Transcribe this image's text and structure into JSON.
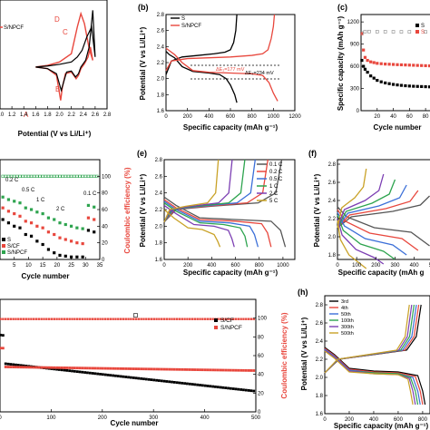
{
  "panels": {
    "a": {
      "legend": [
        "S/NPCF"
      ],
      "xlabel": "Potential (V vs Li/Li⁺)",
      "xticks": [
        "1.0",
        "1.2",
        "1.4",
        "1.6",
        "1.8",
        "2.0",
        "2.2",
        "2.4",
        "2.6",
        "2.8"
      ],
      "peaks": [
        "A",
        "B",
        "C",
        "D"
      ]
    },
    "b": {
      "label": "(b)",
      "xlabel": "Specific capacity (mAh g⁻¹)",
      "ylabel": "Potential (V vs Li/Li⁺)",
      "xticks": [
        "0",
        "200",
        "400",
        "600",
        "800",
        "1000",
        "1200"
      ],
      "yticks": [
        "1.6",
        "1.8",
        "2.0",
        "2.2",
        "2.4",
        "2.6",
        "2.8"
      ],
      "legend": [
        "S",
        "S/NPCF"
      ],
      "annotations": [
        "ΔE₁=177 mV",
        "ΔE₂=234 mV"
      ]
    },
    "c": {
      "label": "(c)",
      "xlabel": "Cycle number",
      "ylabel": "Specific capacity (mAh g⁻¹)",
      "xticks": [
        "20",
        "40",
        "60",
        "80"
      ],
      "yticks": [
        "0",
        "300",
        "600",
        "900",
        "1200"
      ],
      "legend": [
        "S",
        "S"
      ]
    },
    "d": {
      "xlabel": "Cycle number",
      "ylabel_right": "Coulombic efficiency (%)",
      "xticks": [
        "5",
        "10",
        "15",
        "20",
        "25",
        "30",
        "35"
      ],
      "yticks_right": [
        "0",
        "20",
        "40",
        "60",
        "80",
        "100"
      ],
      "rates": [
        "0.2 C",
        "0.5 C",
        "1 C",
        "2 C",
        "0.1 C"
      ],
      "legend": [
        "S",
        "S/CF",
        "S/NPCF"
      ]
    },
    "e": {
      "label": "(e)",
      "xlabel": "Specific capacity (mAh g⁻¹)",
      "ylabel": "Potential (V vs Li/Li⁺)",
      "xticks": [
        "0",
        "200",
        "400",
        "600",
        "800",
        "1000"
      ],
      "yticks": [
        "1.6",
        "1.8",
        "2.0",
        "2.2",
        "2.4",
        "2.6",
        "2.8"
      ],
      "legend": [
        "0.1 C",
        "0.2 C",
        "0.5 C",
        "1 C",
        "2 C",
        "5 C"
      ],
      "colors": [
        "#555555",
        "#e8473d",
        "#3b6fd8",
        "#2ea44f",
        "#7c3fb3",
        "#c9a227"
      ]
    },
    "f": {
      "label": "(f)",
      "xlabel": "Specific capacity (mAh g",
      "ylabel": "Potential (V vs Li/Li⁺)",
      "xticks": [
        "0",
        "100",
        "200",
        "300",
        "400",
        "500"
      ],
      "yticks": [
        "1.8",
        "2.0",
        "2.2",
        "2.4",
        "2.6",
        "2.8"
      ]
    },
    "g": {
      "xlabel": "Cycle number",
      "ylabel_right": "Coulombic efficiency (%)",
      "xticks": [
        "0",
        "100",
        "200",
        "300",
        "400",
        "500"
      ],
      "yticks_right": [
        "0",
        "20",
        "40",
        "60",
        "80",
        "100"
      ],
      "legend": [
        "S/CF",
        "S/NPCF"
      ]
    },
    "h": {
      "label": "(h)",
      "xlabel": "Specific capacity (mAh g⁻¹)",
      "ylabel": "Potential (V vs Li/Li⁺)",
      "xticks": [
        "0",
        "200",
        "400",
        "600",
        "800"
      ],
      "yticks": [
        "1.6",
        "1.8",
        "2.0",
        "2.2",
        "2.4",
        "2.6",
        "2.8"
      ],
      "legend": [
        "3rd",
        "4th",
        "50th",
        "100th",
        "300th",
        "500th"
      ],
      "colors": [
        "#000000",
        "#e8473d",
        "#3b6fd8",
        "#2ea44f",
        "#7c3fb3",
        "#c9a227"
      ]
    }
  },
  "chart_data": [
    {
      "type": "line",
      "panel": "a",
      "xlabel": "Potential (V vs Li/Li⁺)",
      "xlim": [
        1.0,
        2.8
      ],
      "series": [
        {
          "name": "S/NPCF",
          "color": "#e8473d",
          "x": [
            1.6,
            1.8,
            1.95,
            2.02,
            2.05,
            2.1,
            2.2,
            2.28,
            2.32,
            2.36,
            2.42,
            2.48,
            2.52,
            2.56,
            2.5,
            2.42,
            2.36,
            2.3,
            2.2,
            2.0,
            1.8,
            1.6
          ],
          "y": [
            0.0,
            -0.05,
            -0.25,
            -1.0,
            -0.6,
            -0.2,
            -0.15,
            -0.35,
            -0.25,
            -0.05,
            0.1,
            0.3,
            0.6,
            0.2,
            0.55,
            1.3,
            1.6,
            1.2,
            0.4,
            0.15,
            0.05,
            0.0
          ]
        },
        {
          "name": "",
          "color": "#000000",
          "x": [
            1.6,
            1.8,
            1.95,
            2.03,
            2.07,
            2.12,
            2.2,
            2.27,
            2.32,
            2.36,
            2.44,
            2.5,
            2.56,
            2.6,
            2.54,
            2.46,
            2.38,
            2.3,
            2.2,
            2.0,
            1.8,
            1.6
          ],
          "y": [
            0.0,
            -0.05,
            -0.2,
            -0.7,
            -0.45,
            -0.15,
            -0.12,
            -0.3,
            -0.2,
            0.0,
            0.2,
            0.6,
            1.7,
            0.3,
            1.2,
            0.9,
            0.5,
            0.3,
            0.15,
            0.08,
            0.03,
            0.0
          ]
        }
      ]
    },
    {
      "type": "line",
      "panel": "b",
      "xlabel": "Specific capacity (mAh g⁻¹)",
      "ylabel": "Potential (V vs Li/Li⁺)",
      "xlim": [
        0,
        1200
      ],
      "ylim": [
        1.6,
        2.8
      ],
      "series": [
        {
          "name": "S",
          "color": "#000000",
          "x": [
            0,
            30,
            80,
            150,
            250,
            400,
            500,
            560,
            600,
            640,
            660
          ],
          "y": [
            2.34,
            2.3,
            2.26,
            2.15,
            2.09,
            2.07,
            2.05,
            2.0,
            1.92,
            1.8,
            1.7
          ]
        },
        {
          "name": "",
          "color": "#000000",
          "x": [
            0,
            50,
            150,
            300,
            450,
            550,
            600,
            630,
            650,
            660
          ],
          "y": [
            2.05,
            2.22,
            2.27,
            2.29,
            2.31,
            2.33,
            2.36,
            2.45,
            2.6,
            2.8
          ]
        },
        {
          "name": "S/NPCF",
          "color": "#e8473d",
          "x": [
            0,
            30,
            80,
            150,
            250,
            400,
            600,
            800,
            900,
            960,
            1000,
            1040
          ],
          "y": [
            2.38,
            2.35,
            2.3,
            2.2,
            2.1,
            2.08,
            2.07,
            2.06,
            2.04,
            1.95,
            1.82,
            1.72
          ]
        },
        {
          "name": "",
          "color": "#e8473d",
          "x": [
            0,
            50,
            200,
            400,
            600,
            800,
            900,
            950,
            980,
            1000,
            1010
          ],
          "y": [
            2.1,
            2.22,
            2.25,
            2.26,
            2.27,
            2.29,
            2.31,
            2.36,
            2.5,
            2.65,
            2.8
          ]
        }
      ]
    },
    {
      "type": "scatter",
      "panel": "c",
      "xlabel": "Cycle number",
      "ylabel": "Specific capacity (mAh g⁻¹)",
      "xlim": [
        0,
        90
      ],
      "ylim": [
        0,
        1300
      ],
      "series": [
        {
          "name": "S",
          "color": "#000000",
          "x": [
            1,
            3,
            5,
            8,
            12,
            16,
            20,
            25,
            30,
            35,
            40,
            45,
            50,
            55,
            60,
            65,
            70,
            75,
            80,
            85,
            90
          ],
          "y": [
            680,
            600,
            560,
            520,
            470,
            440,
            410,
            390,
            375,
            365,
            355,
            348,
            342,
            337,
            333,
            330,
            328,
            326,
            324,
            322,
            320
          ]
        },
        {
          "name": "S",
          "color": "#e8473d",
          "x": [
            1,
            3,
            5,
            8,
            12,
            16,
            20,
            25,
            30,
            35,
            40,
            45,
            50,
            55,
            60,
            65,
            70,
            75,
            80,
            85,
            90
          ],
          "y": [
            1040,
            820,
            720,
            680,
            660,
            650,
            640,
            635,
            630,
            628,
            625,
            622,
            620,
            618,
            616,
            614,
            612,
            610,
            608,
            606,
            604
          ]
        },
        {
          "name": "",
          "color": "#3b6fd8",
          "x": [
            1,
            5,
            10,
            20,
            30,
            40,
            50,
            60,
            70,
            80,
            90
          ],
          "y": [
            1050,
            1070,
            1070,
            1068,
            1068,
            1067,
            1066,
            1066,
            1065,
            1065,
            1064
          ]
        }
      ]
    },
    {
      "type": "scatter",
      "panel": "d",
      "xlabel": "Cycle number",
      "ylabel": "Coulombic efficiency (%)",
      "xlim": [
        0,
        35
      ],
      "ylim": [
        0,
        120
      ],
      "series": [
        {
          "name": "S",
          "color": "#000000",
          "x": [
            1,
            3,
            5,
            7,
            9,
            11,
            13,
            15,
            17,
            19,
            21,
            23,
            25,
            27,
            29,
            31,
            33
          ],
          "y": [
            48,
            44,
            40,
            38,
            30,
            28,
            22,
            18,
            12,
            8,
            5,
            4,
            3,
            3,
            3,
            35,
            33
          ]
        },
        {
          "name": "S/CF",
          "color": "#e8473d",
          "x": [
            1,
            3,
            5,
            7,
            9,
            11,
            13,
            15,
            17,
            19,
            21,
            23,
            25,
            27,
            29,
            31,
            33
          ],
          "y": [
            62,
            58,
            55,
            52,
            46,
            44,
            40,
            38,
            33,
            30,
            26,
            24,
            22,
            20,
            19,
            50,
            48
          ]
        },
        {
          "name": "S/NPCF",
          "color": "#2ea44f",
          "x": [
            1,
            3,
            5,
            7,
            9,
            11,
            13,
            15,
            17,
            19,
            21,
            23,
            25,
            27,
            29,
            31,
            33
          ],
          "y": [
            75,
            72,
            70,
            68,
            62,
            60,
            57,
            55,
            50,
            48,
            44,
            42,
            40,
            38,
            37,
            65,
            63
          ]
        }
      ]
    },
    {
      "type": "line",
      "panel": "e",
      "xlabel": "Specific capacity (mAh g⁻¹)",
      "ylabel": "Potential (V vs Li/Li⁺)",
      "xlim": [
        0,
        1100
      ],
      "ylim": [
        1.6,
        2.8
      ],
      "series": [
        {
          "name": "0.1 C",
          "color": "#555555",
          "x": [
            0,
            100,
            300,
            600,
            900,
            980,
            1020
          ],
          "y": [
            2.35,
            2.25,
            2.1,
            2.08,
            2.06,
            1.95,
            1.75
          ]
        },
        {
          "name": "0.2 C",
          "color": "#e8473d",
          "x": [
            0,
            100,
            300,
            600,
            820,
            870,
            900
          ],
          "y": [
            2.32,
            2.22,
            2.08,
            2.06,
            2.03,
            1.92,
            1.75
          ]
        },
        {
          "name": "0.5 C",
          "color": "#3b6fd8",
          "x": [
            0,
            100,
            300,
            550,
            720,
            760,
            790
          ],
          "y": [
            2.3,
            2.2,
            2.06,
            2.04,
            2.0,
            1.9,
            1.75
          ]
        },
        {
          "name": "1 C",
          "color": "#2ea44f",
          "x": [
            0,
            100,
            300,
            500,
            640,
            680,
            700
          ],
          "y": [
            2.28,
            2.18,
            2.04,
            2.02,
            1.98,
            1.88,
            1.75
          ]
        },
        {
          "name": "2 C",
          "color": "#7c3fb3",
          "x": [
            0,
            100,
            250,
            420,
            540,
            570,
            590
          ],
          "y": [
            2.25,
            2.15,
            2.02,
            2.0,
            1.95,
            1.85,
            1.75
          ]
        },
        {
          "name": "5 C",
          "color": "#c9a227",
          "x": [
            0,
            80,
            200,
            320,
            420,
            450,
            470
          ],
          "y": [
            2.2,
            2.1,
            1.98,
            1.96,
            1.9,
            1.82,
            1.75
          ]
        }
      ]
    },
    {
      "type": "line",
      "panel": "h",
      "xlabel": "Specific capacity (mAh g⁻¹)",
      "ylabel": "Potential (V vs Li/Li⁺)",
      "xlim": [
        0,
        860
      ],
      "ylim": [
        1.6,
        2.9
      ],
      "series": [
        {
          "name": "3rd",
          "color": "#000000",
          "x": [
            0,
            80,
            200,
            400,
            600,
            760,
            800,
            820
          ],
          "y": [
            2.33,
            2.25,
            2.1,
            2.07,
            2.06,
            2.02,
            1.85,
            1.7
          ]
        },
        {
          "name": "4th",
          "color": "#e8473d",
          "x": [
            0,
            80,
            200,
            400,
            600,
            740,
            780,
            800
          ],
          "y": [
            2.32,
            2.24,
            2.09,
            2.06,
            2.05,
            2.01,
            1.85,
            1.7
          ]
        },
        {
          "name": "50th",
          "color": "#3b6fd8",
          "x": [
            0,
            80,
            200,
            400,
            600,
            720,
            760,
            780
          ],
          "y": [
            2.31,
            2.23,
            2.08,
            2.05,
            2.04,
            2.0,
            1.85,
            1.7
          ]
        },
        {
          "name": "100th",
          "color": "#2ea44f",
          "x": [
            0,
            80,
            200,
            400,
            600,
            700,
            740,
            760
          ],
          "y": [
            2.3,
            2.22,
            2.07,
            2.05,
            2.04,
            2.0,
            1.85,
            1.7
          ]
        },
        {
          "name": "300th",
          "color": "#7c3fb3",
          "x": [
            0,
            80,
            200,
            400,
            600,
            690,
            720,
            740
          ],
          "y": [
            2.3,
            2.22,
            2.07,
            2.04,
            2.03,
            1.99,
            1.85,
            1.7
          ]
        },
        {
          "name": "500th",
          "color": "#c9a227",
          "x": [
            0,
            80,
            200,
            400,
            600,
            680,
            700,
            720
          ],
          "y": [
            2.29,
            2.21,
            2.06,
            2.04,
            2.03,
            1.98,
            1.85,
            1.7
          ]
        }
      ]
    }
  ]
}
